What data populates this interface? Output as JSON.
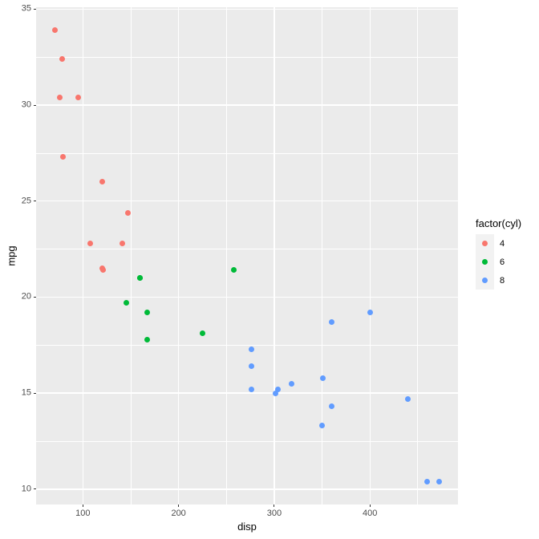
{
  "chart_data": {
    "type": "scatter",
    "title": "",
    "xlabel": "disp",
    "ylabel": "mpg",
    "xlim": [
      51.1,
      492.0
    ],
    "ylim": [
      9.2,
      35.1
    ],
    "x_breaks": [
      100,
      200,
      300,
      400
    ],
    "y_breaks": [
      10,
      15,
      20,
      25,
      30,
      35
    ],
    "x_minor_breaks": [
      50,
      150,
      250,
      350,
      450
    ],
    "y_minor_breaks": [
      12.5,
      17.5,
      22.5,
      27.5,
      32.5
    ],
    "grid": true,
    "legend_position": "right",
    "legend": {
      "title": "factor(cyl)",
      "entries": [
        {
          "label": "4",
          "color": "#F8766D"
        },
        {
          "label": "6",
          "color": "#00BA38"
        },
        {
          "label": "8",
          "color": "#619CFF"
        }
      ]
    },
    "series": [
      {
        "name": "4",
        "color": "#F8766D",
        "points": [
          [
            108,
            22.8
          ],
          [
            146.7,
            24.4
          ],
          [
            140.8,
            22.8
          ],
          [
            78.7,
            32.4
          ],
          [
            75.7,
            30.4
          ],
          [
            71.1,
            33.9
          ],
          [
            120.1,
            21.5
          ],
          [
            79,
            27.3
          ],
          [
            120.3,
            26.0
          ],
          [
            95.1,
            30.4
          ],
          [
            121,
            21.4
          ]
        ]
      },
      {
        "name": "6",
        "color": "#00BA38",
        "points": [
          [
            160,
            21.0
          ],
          [
            160,
            21.0
          ],
          [
            258,
            21.4
          ],
          [
            225,
            18.1
          ],
          [
            167.6,
            19.2
          ],
          [
            167.6,
            17.8
          ],
          [
            145,
            19.7
          ]
        ]
      },
      {
        "name": "8",
        "color": "#619CFF",
        "points": [
          [
            360,
            18.7
          ],
          [
            360,
            14.3
          ],
          [
            275.8,
            16.4
          ],
          [
            275.8,
            17.3
          ],
          [
            275.8,
            15.2
          ],
          [
            472,
            10.4
          ],
          [
            460,
            10.4
          ],
          [
            440,
            14.7
          ],
          [
            318,
            15.5
          ],
          [
            304,
            15.2
          ],
          [
            350,
            13.3
          ],
          [
            400,
            19.2
          ],
          [
            351,
            15.8
          ],
          [
            301,
            15.0
          ]
        ]
      }
    ]
  },
  "theme": {
    "panel_bg": "#EBEBEB",
    "grid_color": "#FFFFFF",
    "axis_text_color": "#4D4D4D",
    "axis_title_color": "#000000",
    "tick_mark_color": "#333333",
    "legend_key_bg": "#F2F2F2",
    "legend_text_color": "#000000"
  }
}
